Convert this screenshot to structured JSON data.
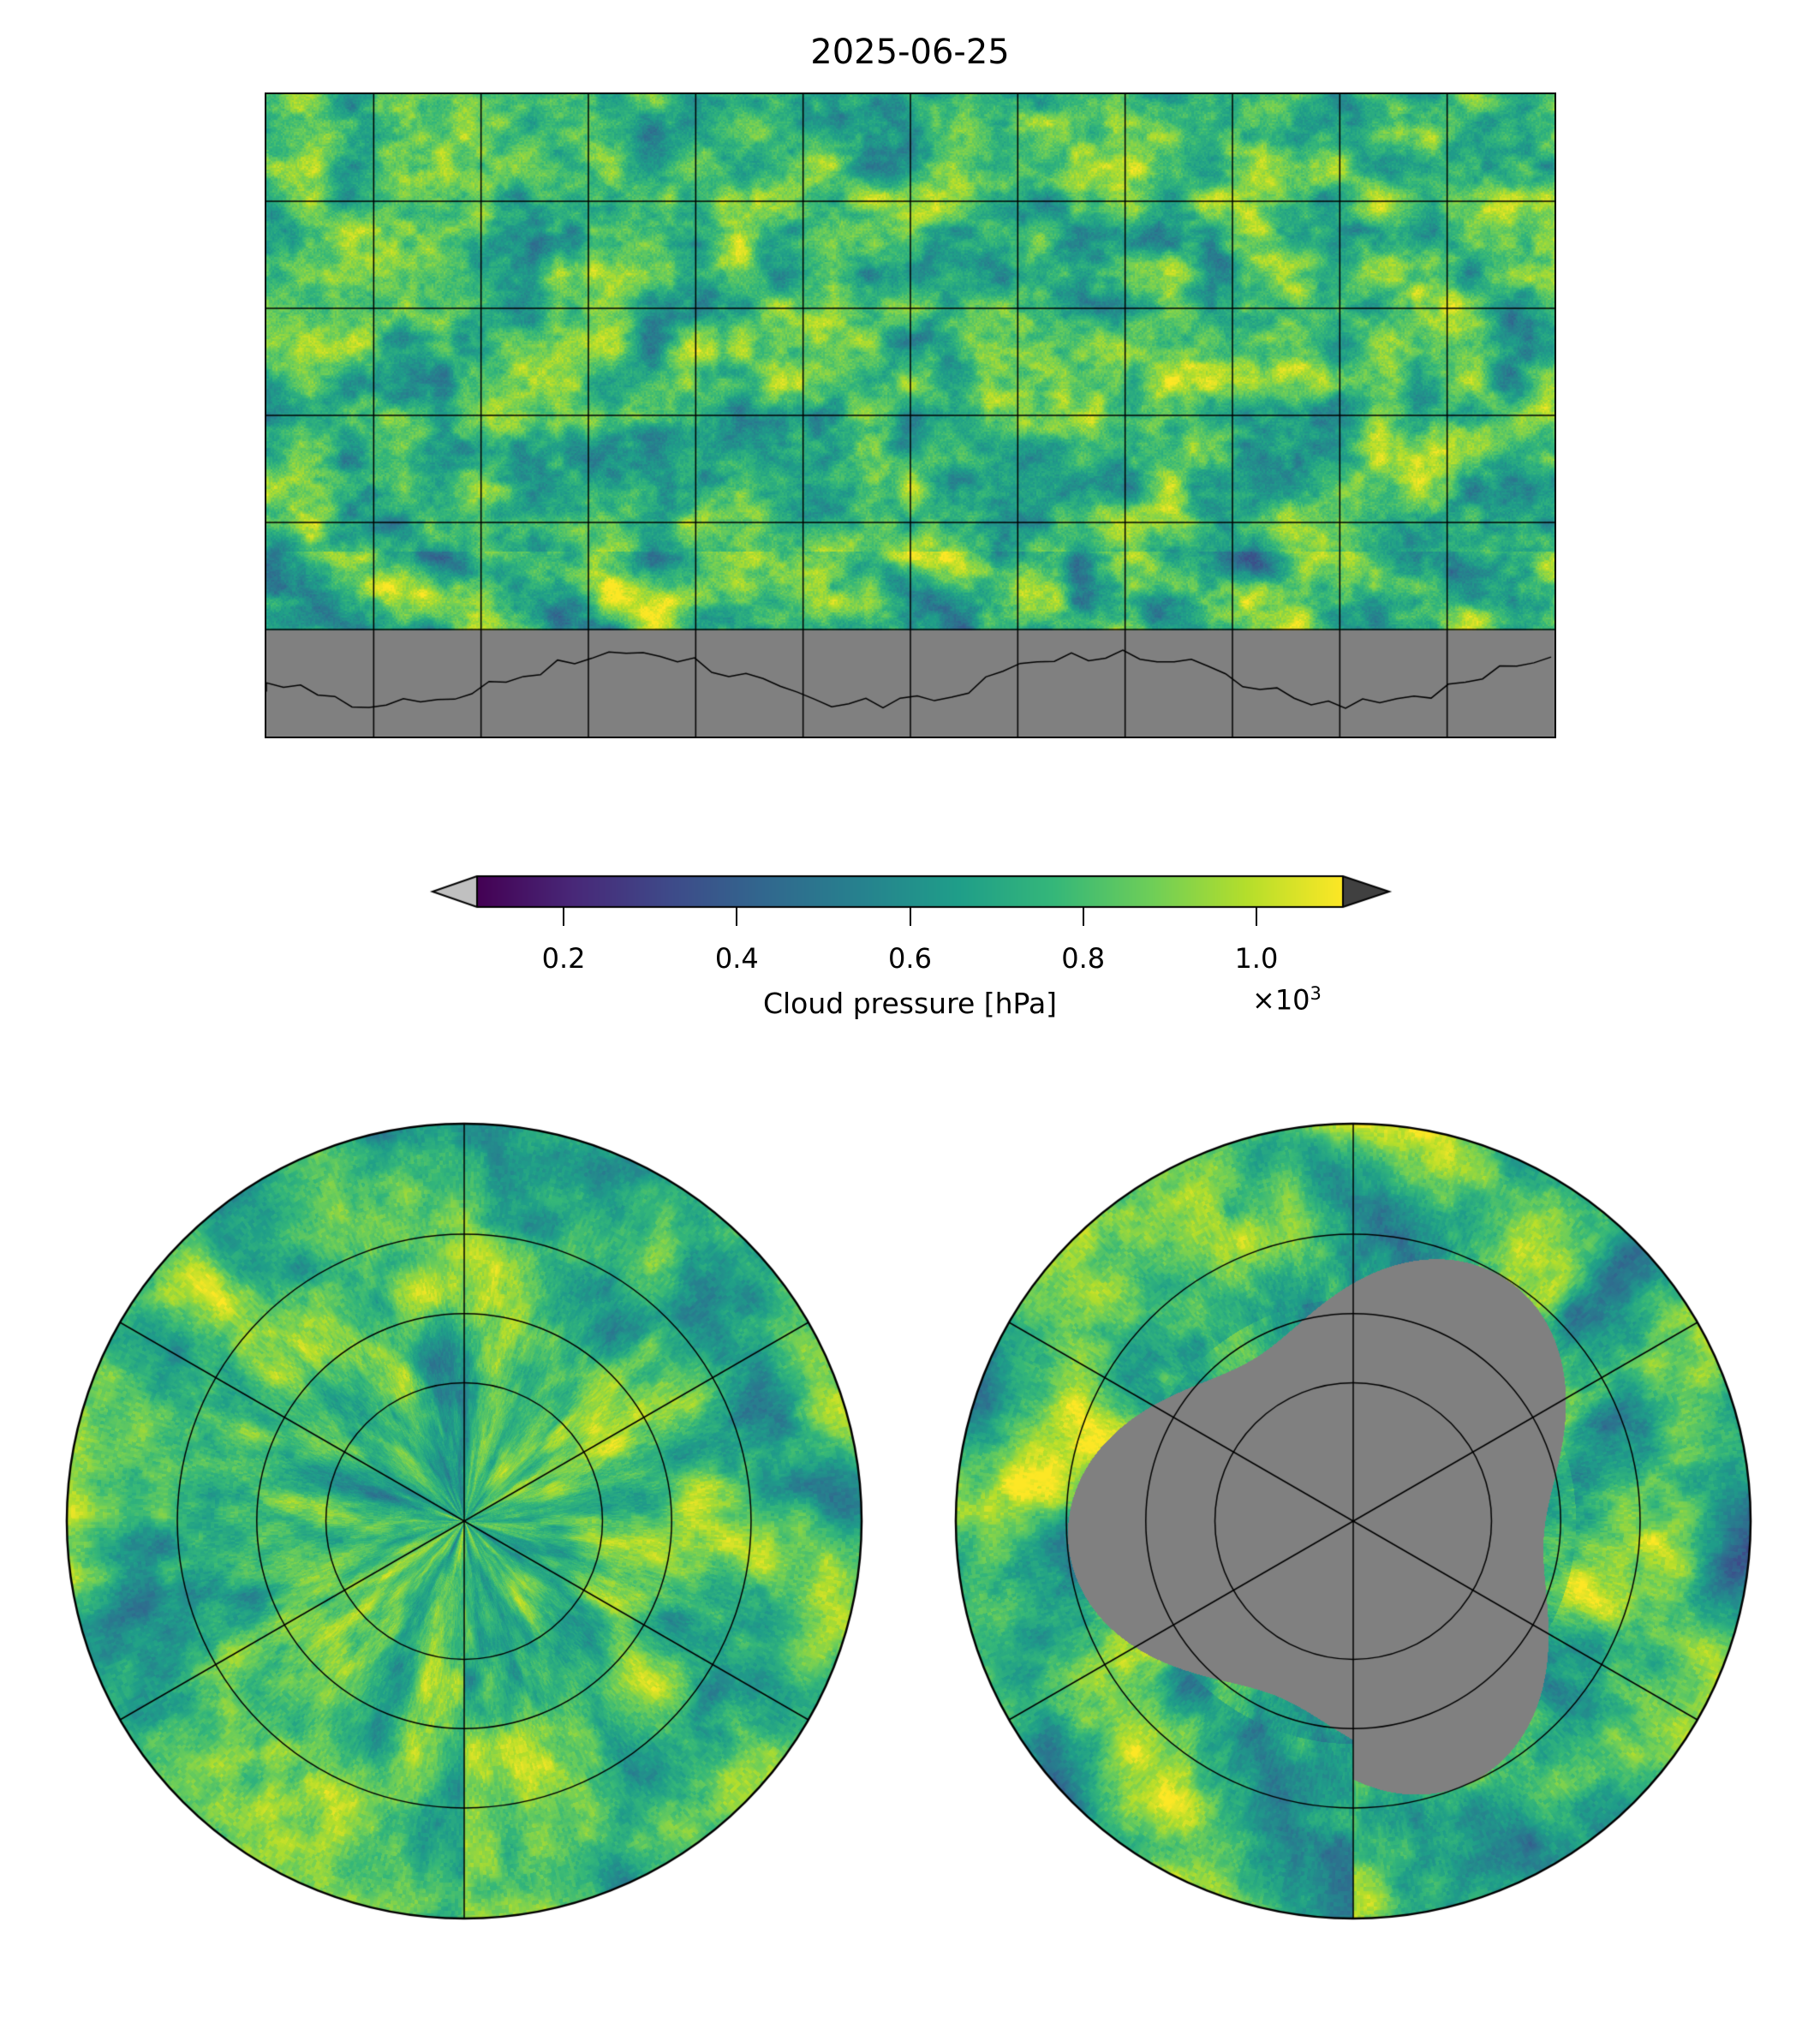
{
  "chart_data": {
    "type": "heatmap",
    "title": "2025-06-25",
    "panels": [
      "global-plate-carree",
      "north-polar-stereographic",
      "south-polar-stereographic"
    ],
    "colorbar": {
      "label": "Cloud pressure [hPa]",
      "multiplier": "×10",
      "exponent": "3",
      "colormap": "viridis",
      "range": [
        100,
        1100
      ],
      "ticks": [
        200,
        400,
        600,
        800,
        1000
      ],
      "tick_labels": [
        "0.2",
        "0.4",
        "0.6",
        "0.8",
        "1.0"
      ],
      "extend": "both",
      "under_color": "#c0c0c0",
      "over_color": "#404040"
    },
    "missing_color": "#808080",
    "gridlines": {
      "lon_step_deg": 30,
      "lat_step_deg": 30
    },
    "missing_region": "south of 60°S (polar night)"
  }
}
